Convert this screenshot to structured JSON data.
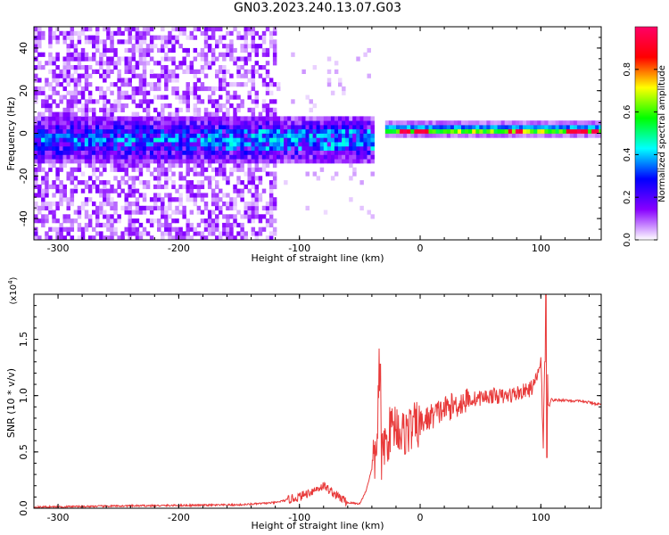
{
  "figure": {
    "title": "GN03.2023.240.13.07.G03"
  },
  "chart_data": [
    {
      "type": "heatmap",
      "xlabel": "Height of straight line (km)",
      "ylabel": "Frequency (Hz)",
      "xlim": [
        -320,
        150
      ],
      "ylim": [
        -50,
        50
      ],
      "x_ticks": [
        -300,
        -200,
        -100,
        0,
        100
      ],
      "y_ticks": [
        -40,
        -20,
        0,
        20,
        40
      ],
      "colorbar": {
        "label": "Normalized spectral amplitude",
        "range": [
          0,
          1
        ],
        "ticks": [
          "0.0",
          "0.2",
          "0.4",
          "0.6",
          "0.8"
        ],
        "tick_values": [
          0,
          0.2,
          0.4,
          0.6,
          0.8
        ],
        "colors": [
          "#ffffff",
          "#8800ff",
          "#0000ff",
          "#00ffff",
          "#00ff00",
          "#ffff00",
          "#ff0000",
          "#ff0066"
        ]
      },
      "features": [
        {
          "region": "noise",
          "x_range": [
            -320,
            -120
          ],
          "freq_range": [
            -50,
            50
          ],
          "amplitude": 0.1
        },
        {
          "region": "ridge",
          "x_range": [
            -320,
            -40
          ],
          "freq_center": -3,
          "freq_halfwidth": 8,
          "amplitude": 0.3
        },
        {
          "region": "signal",
          "x_range": [
            -30,
            150
          ],
          "freq_center": 1.5,
          "freq_halfwidth": 2,
          "amplitude": 0.8
        }
      ]
    },
    {
      "type": "line",
      "xlabel": "Height of straight line (km)",
      "ylabel": "SNR (10 * v/v)",
      "y_multiplier": "(x10",
      "y_multiplier_exp": "4",
      "xlim": [
        -320,
        150
      ],
      "ylim": [
        0,
        1.9
      ],
      "x_ticks": [
        -300,
        -200,
        -100,
        0,
        100
      ],
      "y_ticks": [
        "0.0",
        "0.5",
        "1.0",
        "1.5"
      ],
      "y_tick_values": [
        0,
        0.5,
        1.0,
        1.5
      ],
      "series": [
        {
          "color": "#e83a3a",
          "x": [
            -320,
            -250,
            -150,
            -120,
            -100,
            -90,
            -80,
            -70,
            -60,
            -50,
            -45,
            -40,
            -36,
            -34,
            -32,
            -30,
            -28,
            -25,
            -20,
            -15,
            -10,
            -5,
            0,
            10,
            20,
            30,
            40,
            50,
            60,
            70,
            80,
            90,
            95,
            100,
            102,
            104,
            106,
            108,
            110,
            120,
            130,
            140,
            150
          ],
          "y": [
            0.01,
            0.02,
            0.03,
            0.05,
            0.1,
            0.15,
            0.2,
            0.12,
            0.05,
            0.04,
            0.15,
            0.35,
            0.5,
            1.25,
            0.4,
            0.6,
            0.55,
            0.7,
            0.75,
            0.65,
            0.7,
            0.72,
            0.75,
            0.82,
            0.88,
            0.92,
            0.96,
            0.98,
            1.0,
            0.99,
            1.02,
            1.05,
            1.1,
            1.3,
            0.6,
            1.9,
            0.97,
            0.97,
            0.96,
            0.96,
            0.95,
            0.94,
            0.92
          ]
        }
      ]
    }
  ]
}
